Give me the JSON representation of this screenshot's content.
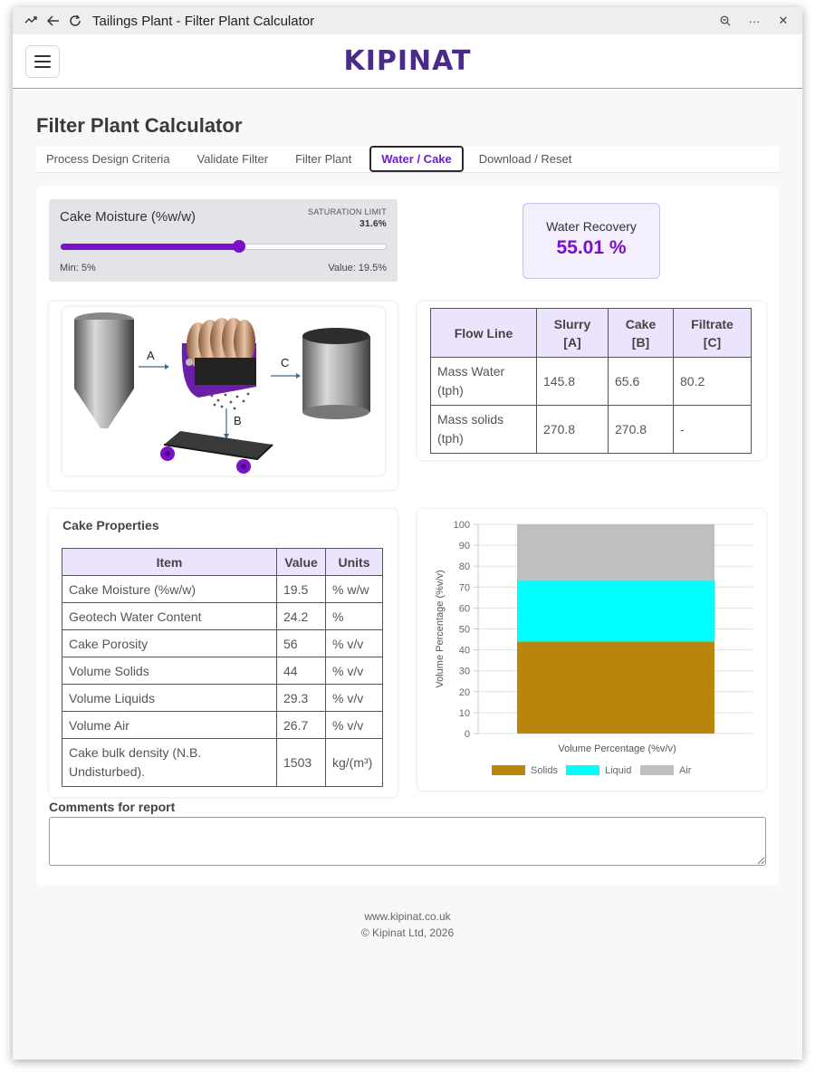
{
  "window": {
    "title": "Tailings Plant - Filter Plant Calculator"
  },
  "appbar": {
    "logo": "KIPINAT"
  },
  "page": {
    "title": "Filter Plant Calculator"
  },
  "tabs": [
    "Process Design Criteria",
    "Validate Filter",
    "Filter Plant",
    "Water / Cake",
    "Download / Reset"
  ],
  "active_tab": "Water / Cake",
  "slider": {
    "label": "Cake Moisture (%w/w)",
    "saturation_label": "SATURATION LIMIT",
    "saturation_value": "31.6%",
    "min_text": "Min: 5%",
    "value_text": "Value: 19.5%",
    "fraction": 0.55
  },
  "recovery": {
    "label": "Water Recovery",
    "value": "55.01 %"
  },
  "diagram": {
    "label_a": "A",
    "label_b": "B",
    "label_c": "C"
  },
  "flow_table": {
    "headers": [
      "Flow Line",
      "Slurry\n[A]",
      "Cake\n[B]",
      "Filtrate\n[C]"
    ],
    "rows": [
      [
        "Mass Water (tph)",
        "145.8",
        "65.6",
        "80.2"
      ],
      [
        "Mass solids (tph)",
        "270.8",
        "270.8",
        "-"
      ]
    ]
  },
  "props": {
    "title": "Cake Properties",
    "headers": [
      "Item",
      "Value",
      "Units"
    ],
    "rows": [
      [
        "Cake Moisture (%w/w)",
        "19.5",
        "% w/w"
      ],
      [
        "Geotech Water Content",
        "24.2",
        "%"
      ],
      [
        "Cake Porosity",
        "56",
        "% v/v"
      ],
      [
        "Volume Solids",
        "44",
        "% v/v"
      ],
      [
        "Volume Liquids",
        "29.3",
        "% v/v"
      ],
      [
        "Volume Air",
        "26.7",
        "% v/v"
      ],
      [
        "Cake bulk density (N.B. Undisturbed).",
        "1503",
        "kg/(m³)"
      ]
    ]
  },
  "chart_data": {
    "type": "bar",
    "stacked": true,
    "categories": [
      ""
    ],
    "series": [
      {
        "name": "Solids",
        "values": [
          44
        ],
        "color": "#b8860b"
      },
      {
        "name": "Liquid",
        "values": [
          29.3
        ],
        "color": "#00ffff"
      },
      {
        "name": "Air",
        "values": [
          26.7
        ],
        "color": "#bfbfbf"
      }
    ],
    "xlabel": "Volume Percentage (%v/v)",
    "ylabel": "Volume Percentage (%v/v)",
    "ylim": [
      0,
      100
    ],
    "yticks": [
      0,
      10,
      20,
      30,
      40,
      50,
      60,
      70,
      80,
      90,
      100
    ],
    "grid": true,
    "legend": "bottom"
  },
  "comments": {
    "label": "Comments for report",
    "value": ""
  },
  "footer": {
    "site": "www.kipinat.co.uk",
    "copyright": "© Kipinat Ltd, 2026"
  }
}
